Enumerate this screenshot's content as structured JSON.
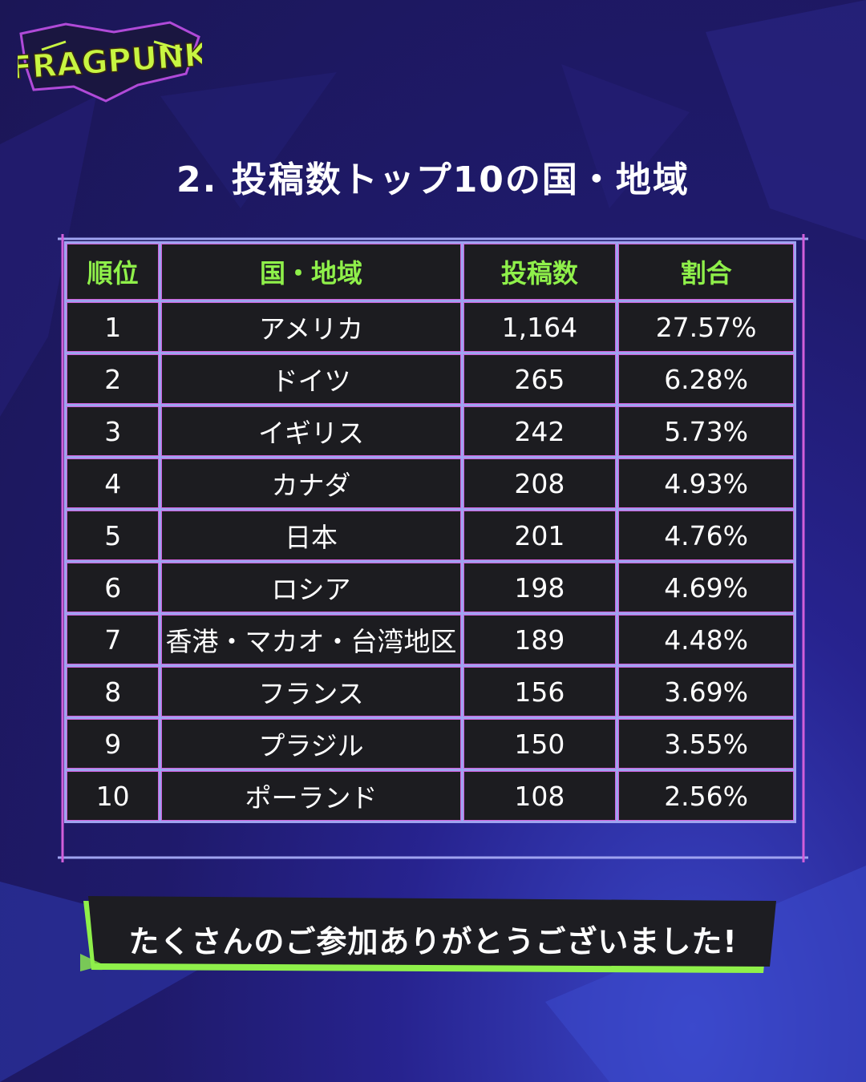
{
  "brand": {
    "logo_text": "FRAGPUNK",
    "accent": "#8ff04a",
    "border": "#9fa3f0",
    "border_glow": "#d15fd9"
  },
  "title": "2. 投稿数トップ10の国・地域",
  "table": {
    "headers": {
      "rank": "順位",
      "region": "国・地域",
      "posts": "投稿数",
      "share": "割合"
    },
    "rows": [
      {
        "rank": "1",
        "region": "アメリカ",
        "posts": "1,164",
        "share": "27.57%"
      },
      {
        "rank": "2",
        "region": "ドイツ",
        "posts": "265",
        "share": "6.28%"
      },
      {
        "rank": "3",
        "region": "イギリス",
        "posts": "242",
        "share": "5.73%"
      },
      {
        "rank": "4",
        "region": "カナダ",
        "posts": "208",
        "share": "4.93%"
      },
      {
        "rank": "5",
        "region": "日本",
        "posts": "201",
        "share": "4.76%"
      },
      {
        "rank": "6",
        "region": "ロシア",
        "posts": "198",
        "share": "4.69%"
      },
      {
        "rank": "7",
        "region": "香港・マカオ・台湾地区",
        "posts": "189",
        "share": "4.48%"
      },
      {
        "rank": "8",
        "region": "フランス",
        "posts": "156",
        "share": "3.69%"
      },
      {
        "rank": "9",
        "region": "プラジル",
        "posts": "150",
        "share": "3.55%"
      },
      {
        "rank": "10",
        "region": "ポーランド",
        "posts": "108",
        "share": "2.56%"
      }
    ]
  },
  "banner": {
    "text": "たくさんのご参加ありがとうございました!"
  }
}
